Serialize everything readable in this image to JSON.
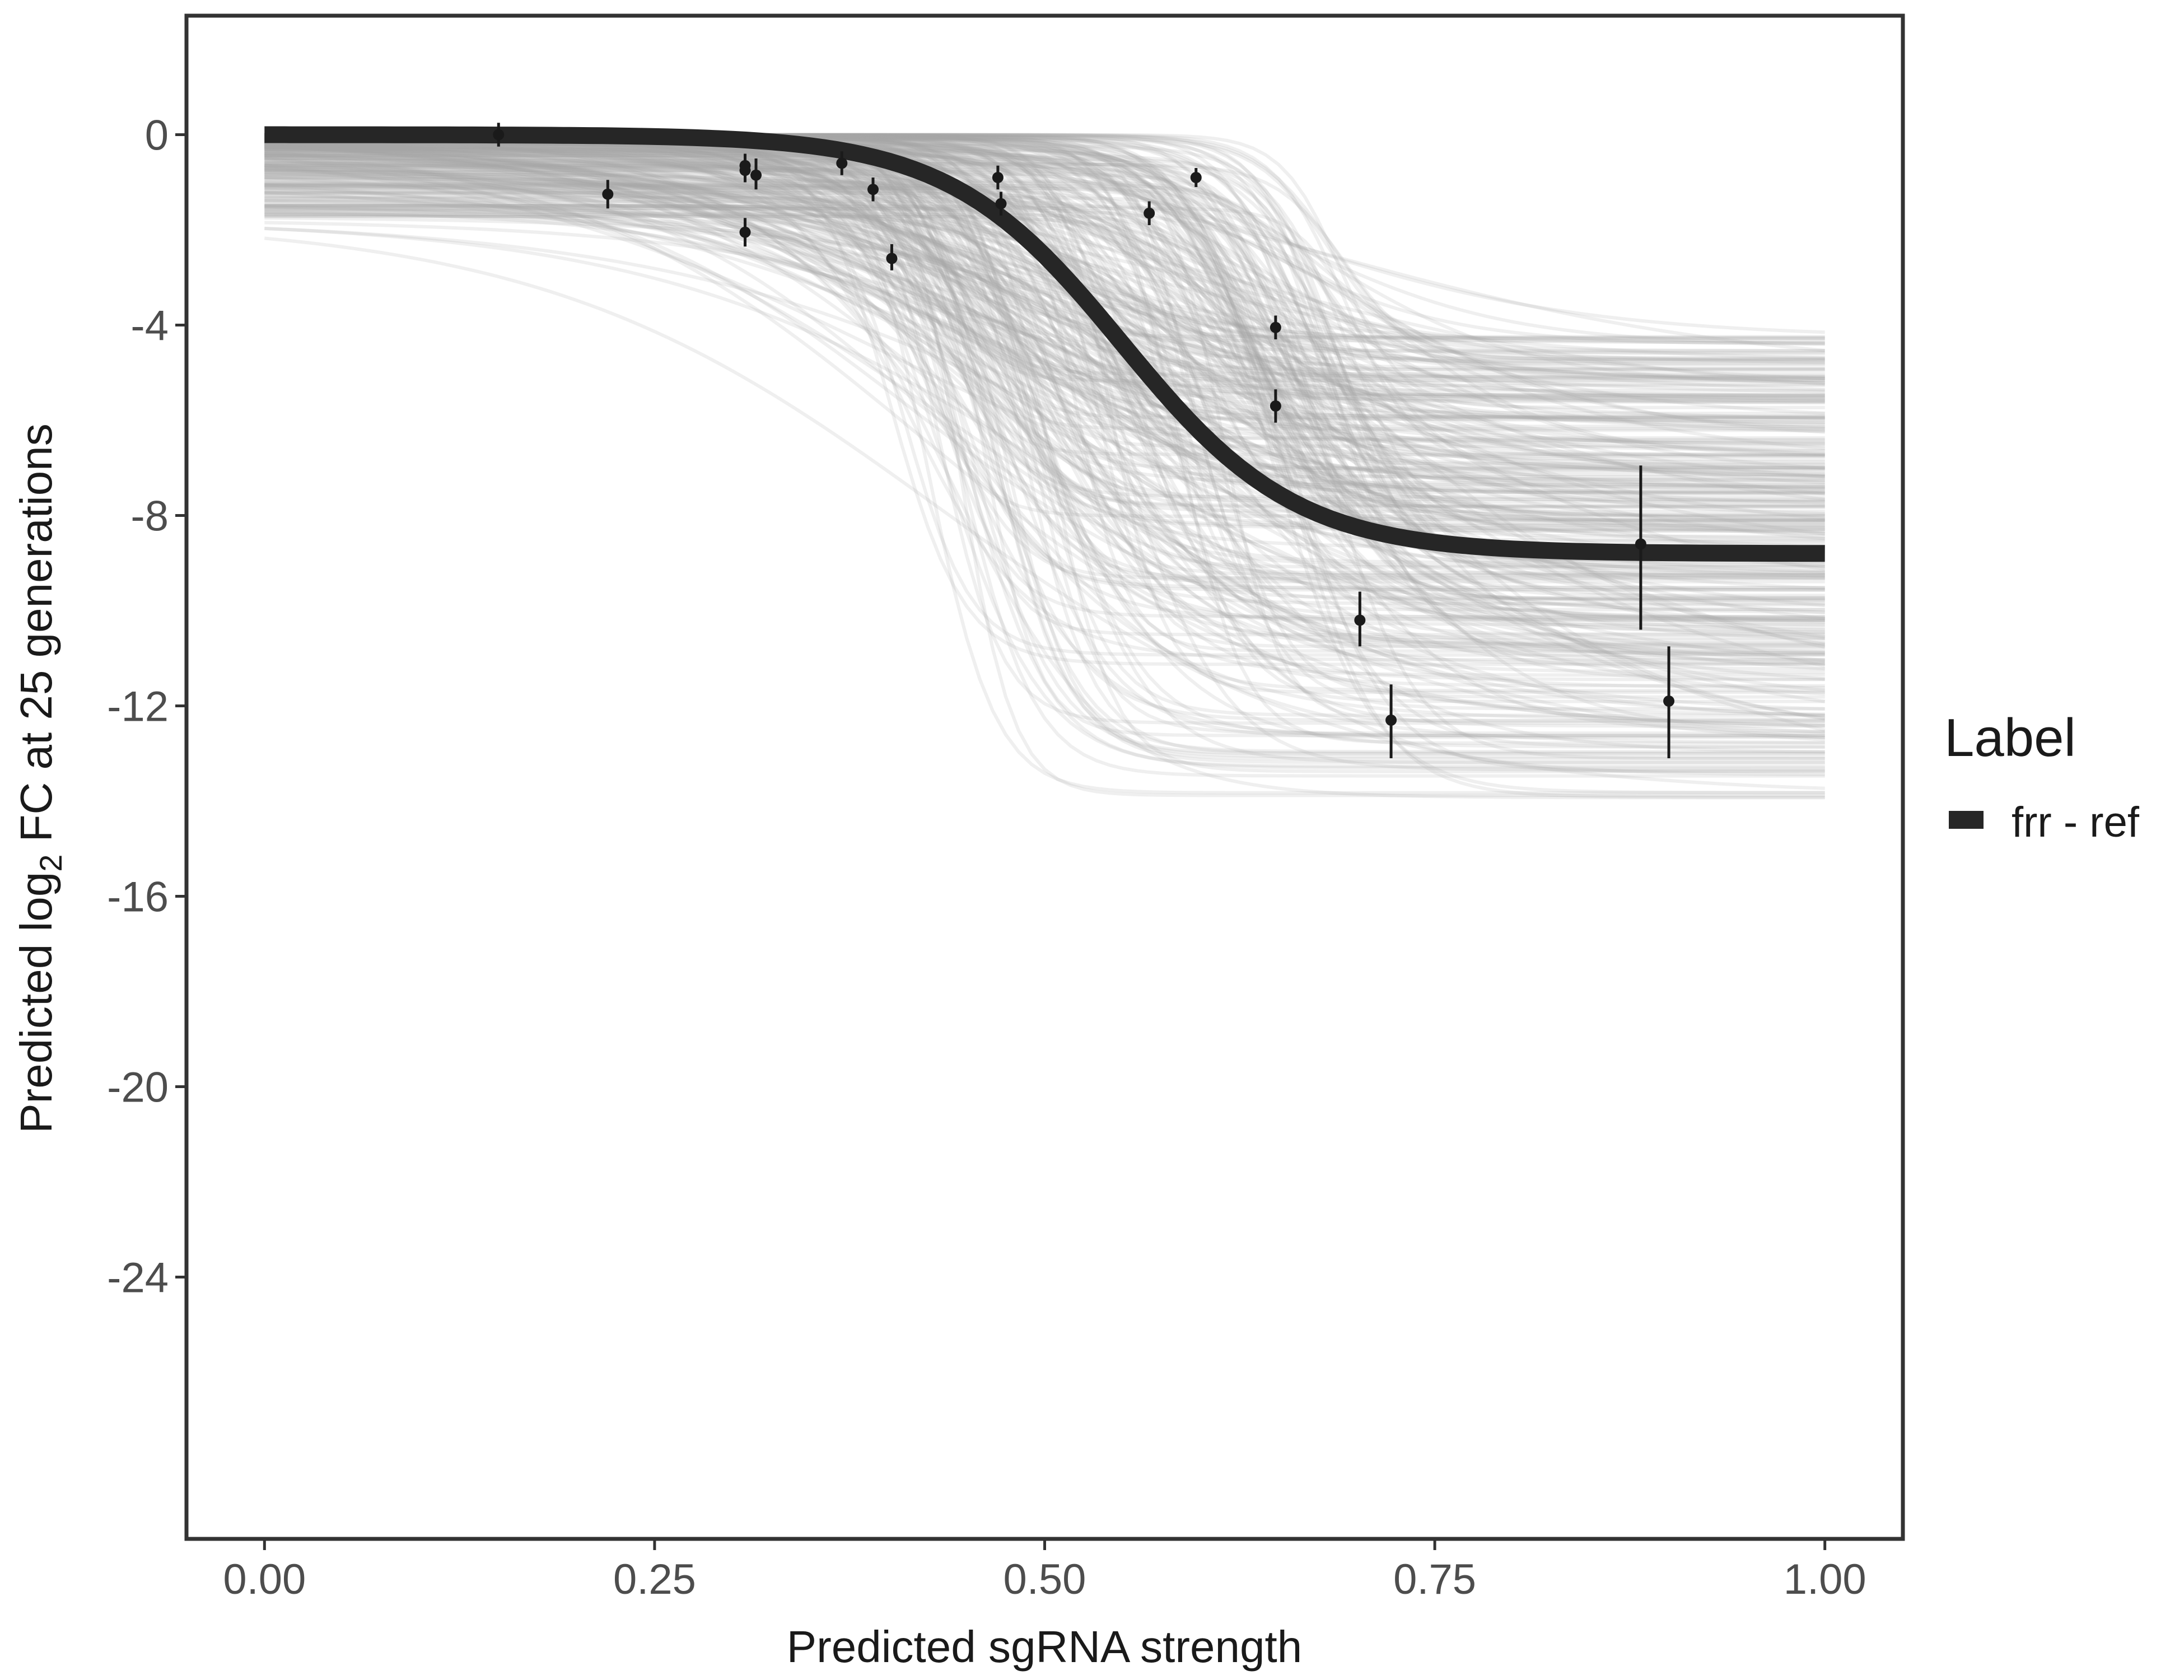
{
  "chart_data": {
    "type": "line",
    "title": "",
    "xlabel": "Predicted sgRNA strength",
    "ylabel_parts": {
      "prefix": "Predicted  log",
      "subscript": "2",
      "suffix": " FC at 25 generations"
    },
    "xlim": [
      -0.05,
      1.05
    ],
    "ylim": [
      -29.5,
      2.5
    ],
    "x_ticks": [
      0,
      0.25,
      0.5,
      0.75,
      1
    ],
    "x_tick_labels": [
      "0.00",
      "0.25",
      "0.50",
      "0.75",
      "1.00"
    ],
    "y_ticks": [
      0,
      -4,
      -8,
      -12,
      -16,
      -20,
      -24
    ],
    "y_tick_labels": [
      "0",
      "-4",
      "-8",
      "-12",
      "-16",
      "-20",
      "-24"
    ],
    "grid": false,
    "legend": {
      "title": "Label",
      "position": "right",
      "entries": [
        {
          "name": "frr - ref",
          "color": "#262626"
        }
      ]
    },
    "fit_curve": {
      "name": "frr - ref",
      "model": "logistic",
      "top": 0.0,
      "bottom": -8.8,
      "midpoint": 0.55,
      "slope": 18,
      "x_range": [
        0,
        1
      ]
    },
    "posterior_draws": {
      "count": 350,
      "color": "#a6a6a6",
      "bottom_range": [
        -14.0,
        -4.2
      ],
      "midpoint_range": [
        0.4,
        0.7
      ],
      "slope_range": [
        7,
        60
      ],
      "top_range": [
        -1.8,
        0
      ]
    },
    "points": [
      {
        "x": 0.15,
        "y": 0.0,
        "err_low": -0.25,
        "err_high": 0.25
      },
      {
        "x": 0.22,
        "y": -1.25,
        "err_low": -1.55,
        "err_high": -0.95
      },
      {
        "x": 0.308,
        "y": -0.65,
        "err_low": -0.9,
        "err_high": -0.4
      },
      {
        "x": 0.308,
        "y": -0.75,
        "err_low": -1.0,
        "err_high": -0.5
      },
      {
        "x": 0.308,
        "y": -2.05,
        "err_low": -2.35,
        "err_high": -1.75
      },
      {
        "x": 0.315,
        "y": -0.85,
        "err_low": -1.15,
        "err_high": -0.5
      },
      {
        "x": 0.37,
        "y": -0.6,
        "err_low": -0.85,
        "err_high": -0.35
      },
      {
        "x": 0.39,
        "y": -1.15,
        "err_low": -1.4,
        "err_high": -0.9
      },
      {
        "x": 0.402,
        "y": -2.6,
        "err_low": -2.85,
        "err_high": -2.3
      },
      {
        "x": 0.47,
        "y": -0.9,
        "err_low": -1.15,
        "err_high": -0.65
      },
      {
        "x": 0.472,
        "y": -1.45,
        "err_low": -1.7,
        "err_high": -1.2
      },
      {
        "x": 0.567,
        "y": -1.65,
        "err_low": -1.9,
        "err_high": -1.4
      },
      {
        "x": 0.597,
        "y": -0.9,
        "err_low": -1.1,
        "err_high": -0.7
      },
      {
        "x": 0.648,
        "y": -4.05,
        "err_low": -4.3,
        "err_high": -3.8
      },
      {
        "x": 0.648,
        "y": -5.7,
        "err_low": -6.05,
        "err_high": -5.35
      },
      {
        "x": 0.702,
        "y": -10.2,
        "err_low": -10.75,
        "err_high": -9.6
      },
      {
        "x": 0.722,
        "y": -12.3,
        "err_low": -13.1,
        "err_high": -11.55
      },
      {
        "x": 0.882,
        "y": -8.6,
        "err_low": -10.4,
        "err_high": -6.95
      },
      {
        "x": 0.9,
        "y": -11.9,
        "err_low": -13.1,
        "err_high": -10.75
      }
    ]
  }
}
